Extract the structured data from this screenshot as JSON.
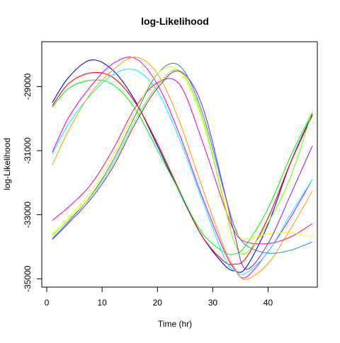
{
  "chart_data": {
    "type": "line",
    "title": "log-Likelihood",
    "xlabel": "Time (hr)",
    "ylabel": "log-Likelihood",
    "xlim": [
      -0.9,
      48.9
    ],
    "ylim": [
      -35260,
      -27600
    ],
    "x_ticks": [
      0,
      10,
      20,
      30,
      40
    ],
    "x_tick_labels": [
      "0",
      "10",
      "20",
      "30",
      "40"
    ],
    "y_ticks": [
      -29000,
      -31000,
      -33000,
      -35000
    ],
    "y_tick_labels": [
      "-29000",
      "-31000",
      "-33000",
      "-35000"
    ],
    "grid": false,
    "legend": "none",
    "x": [
      1,
      4,
      8,
      12,
      16,
      20,
      24,
      28,
      32,
      34,
      36,
      40,
      44,
      48
    ],
    "series": [
      {
        "color": "#0000FF",
        "values": [
          -29500,
          -28700,
          -28170,
          -28500,
          -29450,
          -30850,
          -32300,
          -33650,
          -34550,
          -34760,
          -34650,
          -33300,
          -31400,
          -29850
        ]
      },
      {
        "color": "#FF0000",
        "values": [
          -29600,
          -28900,
          -28570,
          -28720,
          -29500,
          -30780,
          -32250,
          -33650,
          -34450,
          -34540,
          -34350,
          -33100,
          -31400,
          -29900
        ]
      },
      {
        "color": "#00FF00",
        "values": [
          -29650,
          -29050,
          -28800,
          -28940,
          -29700,
          -30980,
          -32280,
          -33550,
          -34160,
          -34220,
          -33950,
          -32800,
          -31200,
          -29800
        ]
      },
      {
        "color": "#FF00FF",
        "values": [
          -31050,
          -29950,
          -28980,
          -28280,
          -28120,
          -28930,
          -30500,
          -32400,
          -34100,
          -34720,
          -34950,
          -34150,
          -33100,
          -31900
        ]
      },
      {
        "color": "#00FFFF",
        "values": [
          -31100,
          -30150,
          -29250,
          -28620,
          -28480,
          -29150,
          -30650,
          -32500,
          -34300,
          -34760,
          -34820,
          -34160,
          -33000,
          -31900
        ]
      },
      {
        "color": "#FFA500",
        "values": [
          -31450,
          -30350,
          -29200,
          -28480,
          -28080,
          -28600,
          -30100,
          -32100,
          -34000,
          -34680,
          -35020,
          -34520,
          -33460,
          -32260
        ]
      },
      {
        "color": "#FF1493",
        "values": [
          -33180,
          -32750,
          -32050,
          -30950,
          -29650,
          -28880,
          -28930,
          -30650,
          -32700,
          -33540,
          -33850,
          -33900,
          -33700,
          -33280
        ]
      },
      {
        "color": "#1E90FF",
        "values": [
          -33750,
          -33200,
          -32400,
          -31300,
          -29900,
          -28600,
          -28350,
          -29750,
          -32250,
          -33400,
          -33950,
          -34200,
          -34110,
          -33850
        ]
      },
      {
        "color": "#FFFF00",
        "values": [
          -33600,
          -33050,
          -32300,
          -31150,
          -29800,
          -28590,
          -28530,
          -30000,
          -32500,
          -33500,
          -33750,
          -33600,
          -33560,
          -33680
        ]
      },
      {
        "color": "#7CFC00",
        "values": [
          -33650,
          -33150,
          -32420,
          -31400,
          -30050,
          -28970,
          -28510,
          -29900,
          -32600,
          -33900,
          -34200,
          -33250,
          -31850,
          -29780
        ]
      },
      {
        "color": "#8A2BE2",
        "values": [
          -33770,
          -33250,
          -32500,
          -31500,
          -30150,
          -29050,
          -28520,
          -29550,
          -32200,
          -33650,
          -34700,
          -33900,
          -32400,
          -30850
        ]
      }
    ]
  }
}
